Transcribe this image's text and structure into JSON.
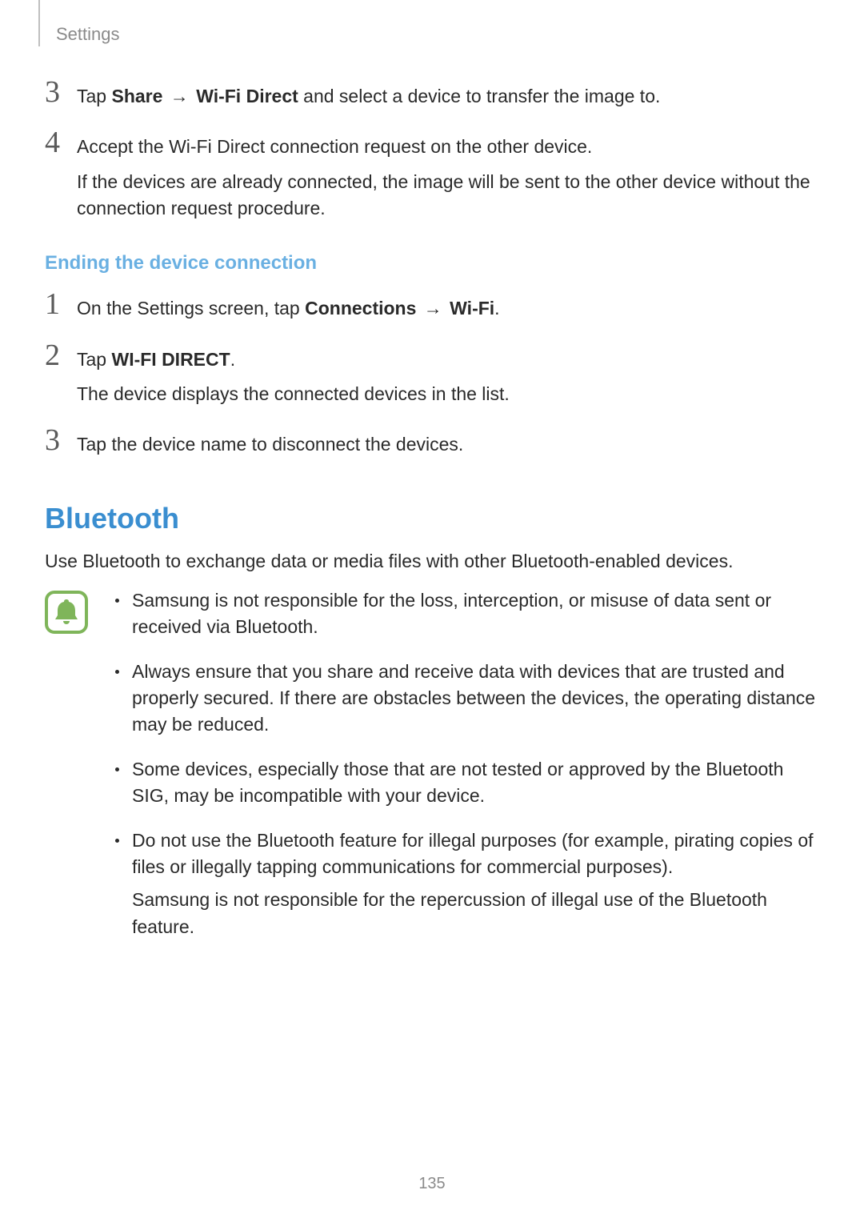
{
  "header": {
    "label": "Settings"
  },
  "steps_a": [
    {
      "num": "3",
      "parts": [
        {
          "type": "text",
          "val": "Tap "
        },
        {
          "type": "bold",
          "val": "Share"
        },
        {
          "type": "arrow",
          "val": " → "
        },
        {
          "type": "bold",
          "val": "Wi-Fi Direct"
        },
        {
          "type": "text",
          "val": " and select a device to transfer the image to."
        }
      ]
    },
    {
      "num": "4",
      "parts": [
        {
          "type": "text",
          "val": "Accept the Wi-Fi Direct connection request on the other device."
        }
      ],
      "extra": "If the devices are already connected, the image will be sent to the other device without the connection request procedure."
    }
  ],
  "subheading": "Ending the device connection",
  "steps_b": [
    {
      "num": "1",
      "parts": [
        {
          "type": "text",
          "val": "On the Settings screen, tap "
        },
        {
          "type": "bold",
          "val": "Connections"
        },
        {
          "type": "arrow",
          "val": " → "
        },
        {
          "type": "bold",
          "val": "Wi-Fi"
        },
        {
          "type": "text",
          "val": "."
        }
      ]
    },
    {
      "num": "2",
      "parts": [
        {
          "type": "text",
          "val": "Tap "
        },
        {
          "type": "bold",
          "val": "WI-FI DIRECT"
        },
        {
          "type": "text",
          "val": "."
        }
      ],
      "extra": "The device displays the connected devices in the list."
    },
    {
      "num": "3",
      "parts": [
        {
          "type": "text",
          "val": "Tap the device name to disconnect the devices."
        }
      ]
    }
  ],
  "section": {
    "title": "Bluetooth",
    "intro": "Use Bluetooth to exchange data or media files with other Bluetooth-enabled devices."
  },
  "notes": [
    {
      "paras": [
        "Samsung is not responsible for the loss, interception, or misuse of data sent or received via Bluetooth."
      ]
    },
    {
      "paras": [
        "Always ensure that you share and receive data with devices that are trusted and properly secured. If there are obstacles between the devices, the operating distance may be reduced."
      ]
    },
    {
      "paras": [
        "Some devices, especially those that are not tested or approved by the Bluetooth SIG, may be incompatible with your device."
      ]
    },
    {
      "paras": [
        "Do not use the Bluetooth feature for illegal purposes (for example, pirating copies of files or illegally tapping communications for commercial purposes).",
        "Samsung is not responsible for the repercussion of illegal use of the Bluetooth feature."
      ]
    }
  ],
  "icon": {
    "border_color": "#7fb55a",
    "bell_fill": "#7fb55a",
    "bg": "#ffffff"
  },
  "page_number": "135",
  "colors": {
    "subheading": "#6ab0e2",
    "section_heading": "#3a8ed0",
    "header_label": "#8a8a8a",
    "body_text": "#2a2a2a"
  }
}
